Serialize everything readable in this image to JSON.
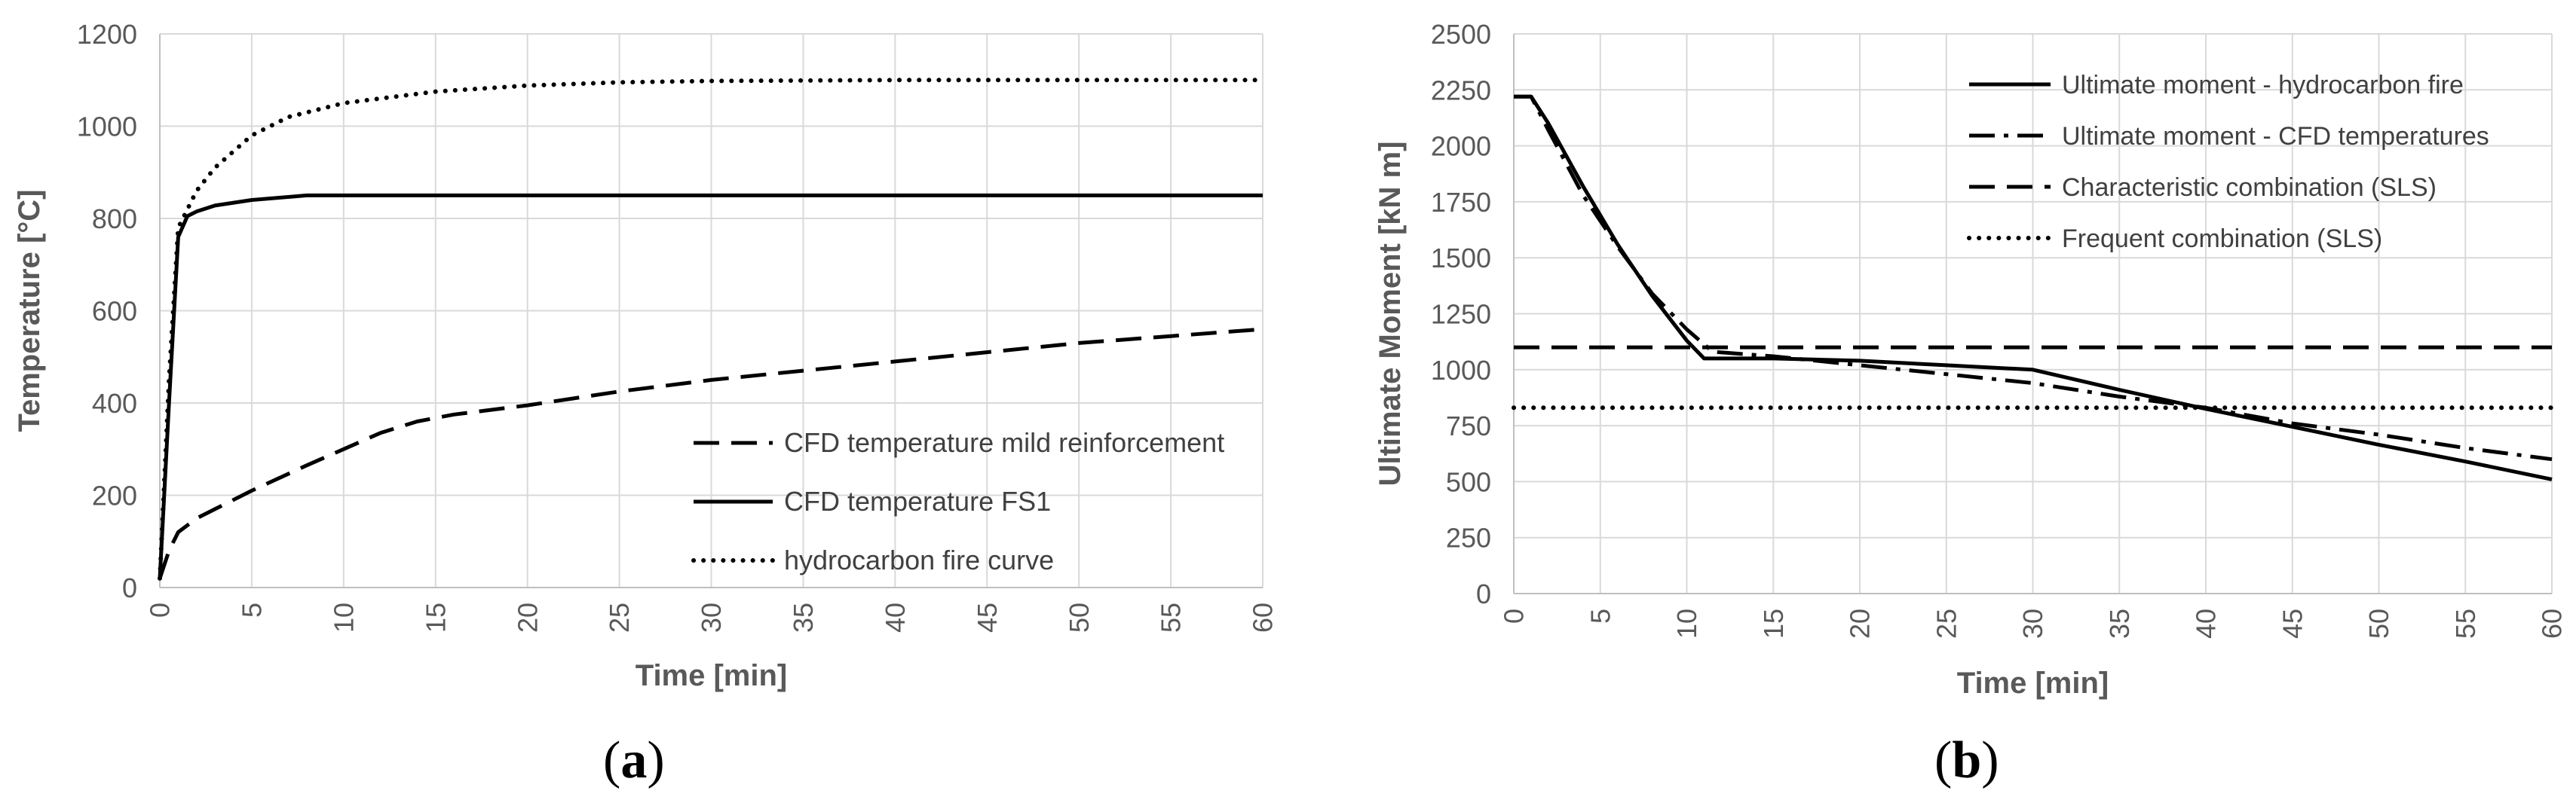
{
  "chart_data": [
    {
      "type": "line",
      "panel_label": "a",
      "xlabel": "Time [min]",
      "ylabel": "Temperature [°C]",
      "xlim": [
        0,
        60
      ],
      "ylim": [
        0,
        1200
      ],
      "x_ticks": [
        0,
        5,
        10,
        15,
        20,
        25,
        30,
        35,
        40,
        45,
        50,
        55,
        60
      ],
      "y_ticks": [
        0,
        200,
        400,
        600,
        800,
        1000,
        1200
      ],
      "grid": true,
      "legend_position": "bottom-right",
      "series": [
        {
          "name": "CFD temperature mild reinforcement",
          "style": "dashed",
          "color": "#000000",
          "x": [
            0,
            0.5,
            1,
            2,
            3,
            5,
            8,
            10,
            12,
            14,
            16,
            20,
            25,
            30,
            35,
            40,
            45,
            50,
            55,
            60
          ],
          "y": [
            20,
            80,
            120,
            150,
            170,
            210,
            265,
            300,
            335,
            360,
            375,
            395,
            425,
            450,
            470,
            490,
            510,
            530,
            545,
            560
          ]
        },
        {
          "name": "CFD temperature FS1",
          "style": "solid",
          "color": "#000000",
          "x": [
            0,
            0.5,
            1,
            1.5,
            2,
            3,
            5,
            8,
            10,
            20,
            30,
            40,
            50,
            60
          ],
          "y": [
            20,
            400,
            760,
            805,
            815,
            828,
            840,
            850,
            850,
            850,
            850,
            850,
            850,
            850
          ]
        },
        {
          "name": "hydrocarbon fire curve",
          "style": "dotted",
          "color": "#000000",
          "x": [
            0,
            0.5,
            1,
            2,
            3,
            5,
            7,
            10,
            15,
            20,
            25,
            30,
            40,
            50,
            60
          ],
          "y": [
            20,
            450,
            780,
            860,
            910,
            980,
            1020,
            1050,
            1075,
            1088,
            1095,
            1098,
            1100,
            1100,
            1100
          ]
        }
      ]
    },
    {
      "type": "line",
      "panel_label": "b",
      "xlabel": "Time [min]",
      "ylabel": "Ultimate Moment [kN m]",
      "xlim": [
        0,
        60
      ],
      "ylim": [
        0,
        2500
      ],
      "x_ticks": [
        0,
        5,
        10,
        15,
        20,
        25,
        30,
        35,
        40,
        45,
        50,
        55,
        60
      ],
      "y_ticks": [
        0,
        250,
        500,
        750,
        1000,
        1250,
        1500,
        1750,
        2000,
        2250,
        2500
      ],
      "grid": true,
      "legend_position": "top-right",
      "series": [
        {
          "name": "Ultimate moment - hydrocarbon fire",
          "style": "solid",
          "color": "#000000",
          "x": [
            0,
            1,
            2,
            4,
            6,
            8,
            10,
            11,
            15,
            20,
            25,
            30,
            35,
            40,
            45,
            50,
            55,
            60
          ],
          "y": [
            2220,
            2220,
            2100,
            1820,
            1560,
            1330,
            1130,
            1050,
            1050,
            1040,
            1020,
            1000,
            910,
            825,
            745,
            665,
            590,
            510
          ]
        },
        {
          "name": "Ultimate moment - CFD temperatures",
          "style": "dashdot",
          "color": "#000000",
          "x": [
            0,
            1,
            2,
            4,
            6,
            8,
            10,
            11.5,
            15,
            20,
            25,
            30,
            35,
            40,
            45,
            50,
            55,
            60
          ],
          "y": [
            2220,
            2220,
            2070,
            1780,
            1550,
            1340,
            1180,
            1080,
            1060,
            1020,
            980,
            940,
            880,
            830,
            760,
            710,
            650,
            600
          ]
        },
        {
          "name": "Characteristic combination (SLS)",
          "style": "dashed",
          "color": "#000000",
          "x": [
            0,
            60
          ],
          "y": [
            1100,
            1100
          ]
        },
        {
          "name": "Frequent combination (SLS)",
          "style": "dotted",
          "color": "#000000",
          "x": [
            0,
            60
          ],
          "y": [
            830,
            830
          ]
        }
      ]
    }
  ]
}
